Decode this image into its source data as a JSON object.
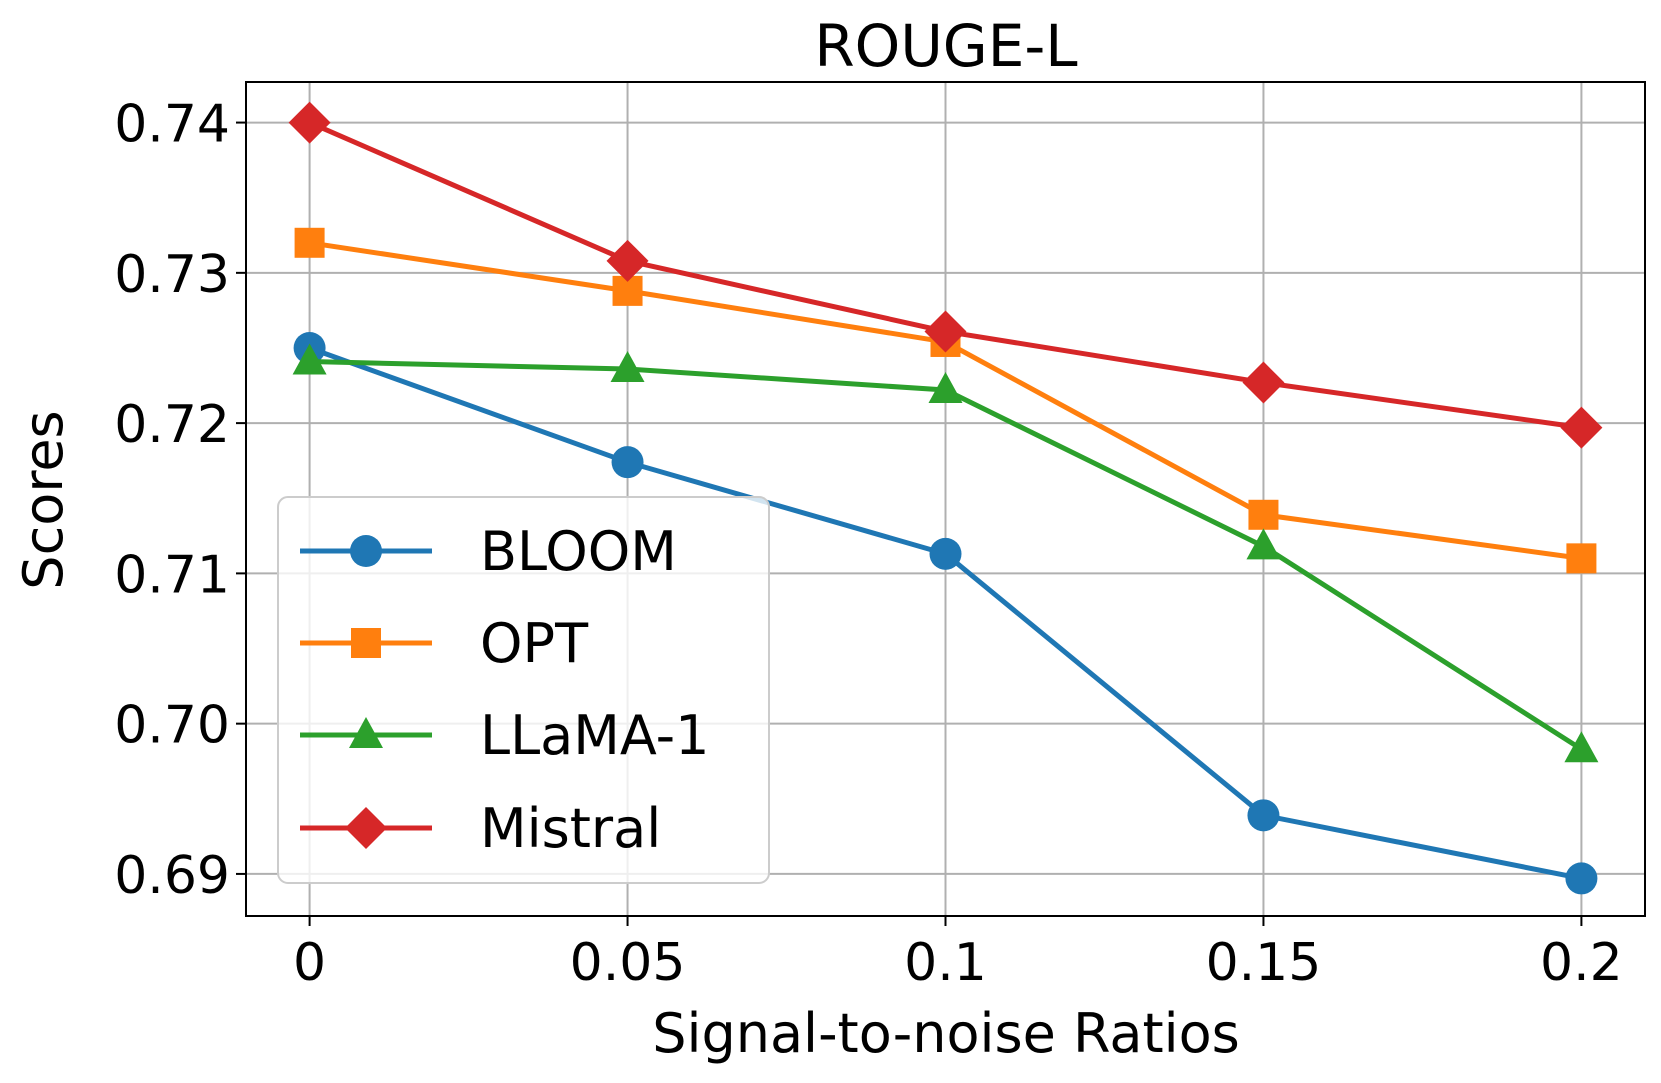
{
  "chart_data": {
    "type": "line",
    "title": "ROUGE-L",
    "xlabel": "Signal-to-noise Ratios",
    "ylabel": "Scores",
    "x": [
      0,
      0.05,
      0.1,
      0.15,
      0.2
    ],
    "xtick_labels": [
      "0",
      "0.05",
      "0.1",
      "0.15",
      "0.2"
    ],
    "yticks": [
      0.69,
      0.7,
      0.71,
      0.72,
      0.73,
      0.74
    ],
    "ytick_labels": [
      "0.69",
      "0.70",
      "0.71",
      "0.72",
      "0.73",
      "0.74"
    ],
    "xlim": [
      -0.01,
      0.21
    ],
    "ylim": [
      0.6872,
      0.7427
    ],
    "grid": true,
    "legend_position": "lower-left",
    "series": [
      {
        "name": "BLOOM",
        "color": "#1f77b4",
        "marker": "circle",
        "values": [
          0.725,
          0.7174,
          0.7113,
          0.6939,
          0.6897
        ]
      },
      {
        "name": "OPT",
        "color": "#ff7f0e",
        "marker": "square",
        "values": [
          0.732,
          0.7288,
          0.7254,
          0.7139,
          0.711
        ]
      },
      {
        "name": "LLaMA-1",
        "color": "#2ca02c",
        "marker": "triangle",
        "values": [
          0.7241,
          0.7236,
          0.7222,
          0.7118,
          0.6983
        ]
      },
      {
        "name": "Mistral",
        "color": "#d62728",
        "marker": "diamond",
        "values": [
          0.74,
          0.7308,
          0.7261,
          0.7227,
          0.7197
        ]
      }
    ]
  }
}
